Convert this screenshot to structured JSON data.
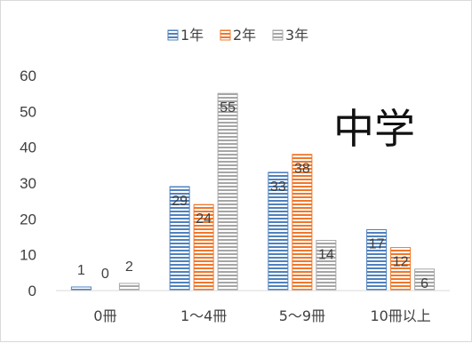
{
  "chart_data": {
    "type": "bar",
    "title": "中学",
    "categories": [
      "0冊",
      "1～4冊",
      "5～9冊",
      "10冊以上"
    ],
    "series": [
      {
        "name": "1年",
        "values": [
          1,
          29,
          33,
          17
        ],
        "color": "#4f81bd"
      },
      {
        "name": "2年",
        "values": [
          0,
          24,
          38,
          12
        ],
        "color": "#f0772a"
      },
      {
        "name": "3年",
        "values": [
          2,
          55,
          14,
          6
        ],
        "color": "#a6a6a6"
      }
    ],
    "ylim": [
      0,
      60
    ],
    "yticks": [
      0,
      10,
      20,
      30,
      40,
      50,
      60
    ],
    "legend_position": "top",
    "grid": false,
    "bar_fill": "horizontal-stripes"
  }
}
